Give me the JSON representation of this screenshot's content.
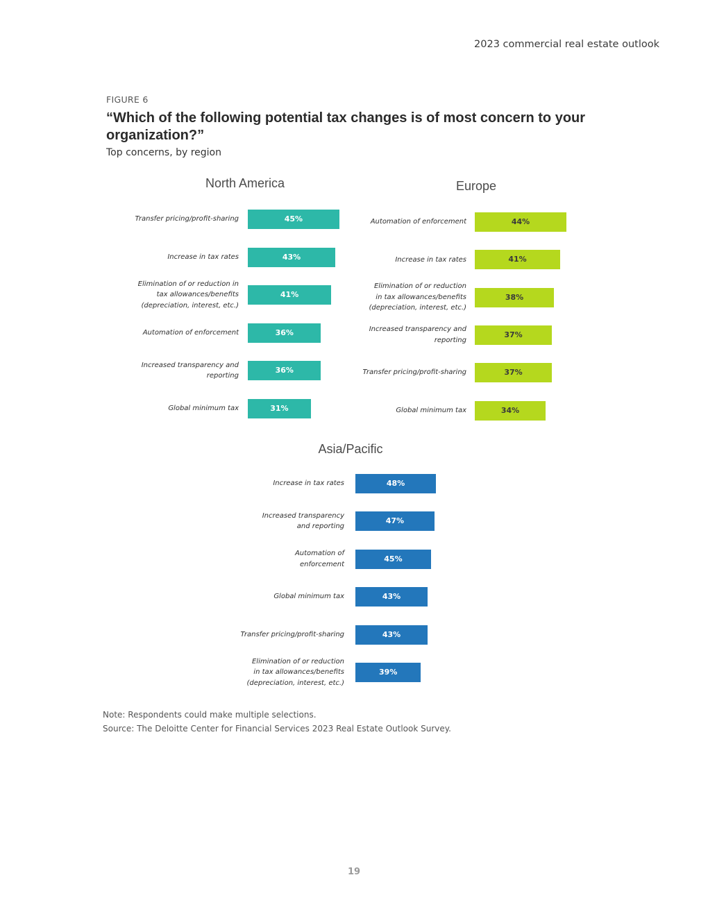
{
  "header": {
    "title": "2023 commercial real estate outlook"
  },
  "figure": {
    "label": "FIGURE 6",
    "title": "“Which of the following potential tax changes is of most concern to your organization?”",
    "subtitle": "Top concerns, by region"
  },
  "chart_data": [
    {
      "type": "bar",
      "orientation": "horizontal",
      "title": "North America",
      "color": "#2db8a8",
      "label_color": "#ffffff",
      "categories": [
        "Transfer pricing/profit-sharing",
        "Increase in tax rates",
        "Elimination of or reduction in\ntax allowances/benefits\n(depreciation, interest, etc.)",
        "Automation of enforcement",
        "Increased transparency and\nreporting",
        "Global minimum tax"
      ],
      "values": [
        45,
        43,
        41,
        36,
        36,
        31
      ],
      "value_labels": [
        "45%",
        "43%",
        "41%",
        "36%",
        "36%",
        "31%"
      ],
      "unit": "%"
    },
    {
      "type": "bar",
      "orientation": "horizontal",
      "title": "Europe",
      "color": "#b5d81e",
      "label_color": "#3a3a3a",
      "categories": [
        "Automation of enforcement",
        "Increase in tax rates",
        "Elimination of or reduction\nin tax allowances/benefits\n(depreciation, interest, etc.)",
        "Increased transparency and\nreporting",
        "Transfer pricing/profit-sharing",
        "Global minimum tax"
      ],
      "values": [
        44,
        41,
        38,
        37,
        37,
        34
      ],
      "value_labels": [
        "44%",
        "41%",
        "38%",
        "37%",
        "37%",
        "34%"
      ],
      "unit": "%"
    },
    {
      "type": "bar",
      "orientation": "horizontal",
      "title": "Asia/Pacific",
      "color": "#2377bb",
      "label_color": "#ffffff",
      "categories": [
        "Increase in tax rates",
        "Increased transparency\nand reporting",
        "Automation of\nenforcement",
        "Global minimum tax",
        "Transfer pricing/profit-sharing",
        "Elimination of or reduction\nin tax allowances/benefits\n(depreciation, interest, etc.)"
      ],
      "values": [
        48,
        47,
        45,
        43,
        43,
        39
      ],
      "value_labels": [
        "48%",
        "47%",
        "45%",
        "43%",
        "43%",
        "39%"
      ],
      "unit": "%"
    }
  ],
  "notes": {
    "note": "Note: Respondents could make multiple selections.",
    "source": "Source: The Deloitte Center for Financial Services 2023 Real Estate Outlook Survey."
  },
  "page_number": "19"
}
